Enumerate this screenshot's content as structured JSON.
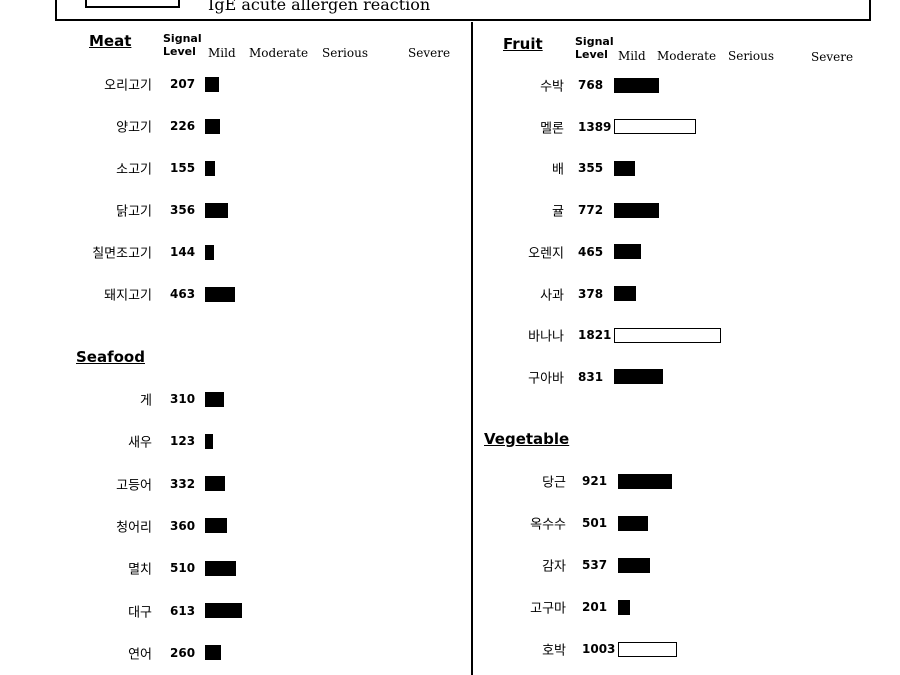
{
  "header_text": "IgE acute allergen reaction",
  "signal_label": "Signal",
  "level_label": "Level",
  "level_scale": [
    "Mild",
    "Moderate",
    "Serious",
    "Severe"
  ],
  "chart_data": [
    {
      "type": "bar",
      "title": "Meat",
      "categories": [
        "오리고기",
        "양고기",
        "소고기",
        "닭고기",
        "칠면조고기",
        "돼지고기"
      ],
      "values": [
        207,
        226,
        155,
        356,
        144,
        463
      ],
      "style": [
        "filled",
        "filled",
        "filled",
        "filled",
        "filled",
        "filled"
      ]
    },
    {
      "type": "bar",
      "title": "Seafood",
      "categories": [
        "게",
        "새우",
        "고등어",
        "청어리",
        "멸치",
        "대구",
        "연어"
      ],
      "values": [
        310,
        123,
        332,
        360,
        510,
        613,
        260
      ],
      "style": [
        "filled",
        "filled",
        "filled",
        "filled",
        "filled",
        "filled",
        "filled"
      ]
    },
    {
      "type": "bar",
      "title": "Fruit",
      "categories": [
        "수박",
        "멜론",
        "배",
        "귤",
        "오렌지",
        "사과",
        "바나나",
        "구아바"
      ],
      "values": [
        768,
        1389,
        355,
        772,
        465,
        378,
        1821,
        831
      ],
      "style": [
        "filled",
        "outline",
        "filled",
        "filled",
        "filled",
        "filled",
        "outline",
        "filled"
      ]
    },
    {
      "type": "bar",
      "title": "Vegetable",
      "categories": [
        "당근",
        "옥수수",
        "감자",
        "고구마",
        "호박"
      ],
      "values": [
        921,
        501,
        537,
        201,
        1003
      ],
      "style": [
        "filled",
        "filled",
        "filled",
        "filled",
        "outline"
      ]
    }
  ]
}
